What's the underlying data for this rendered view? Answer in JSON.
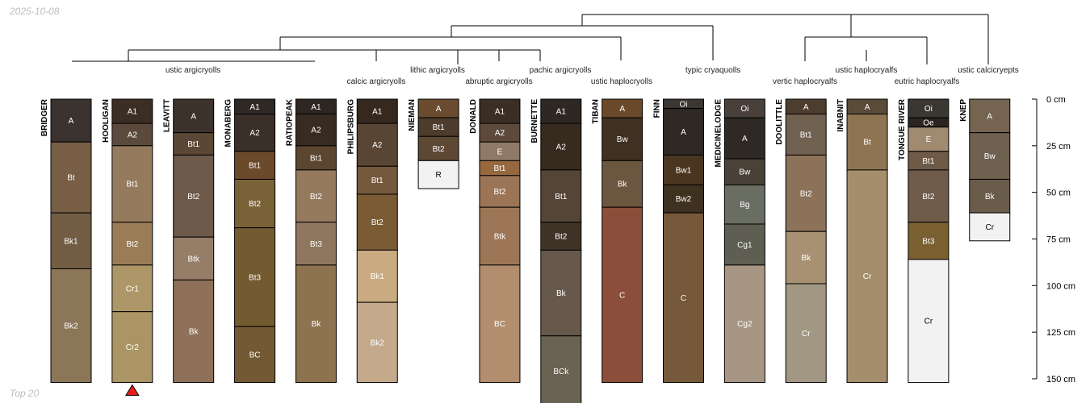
{
  "corner_labels": {
    "date": "2025-10-08",
    "subset": "Top 20"
  },
  "taxonomy_labels": [
    "ustic argicryolls",
    "calcic argicryolls",
    "lithic argicryolls",
    "abruptic argicryolls",
    "pachic argicryolls",
    "ustic haplocryolls",
    "typic cryaquolls",
    "vertic haplocryalfs",
    "ustic haplocryalfs",
    "eutric haplocryalfs",
    "ustic calcicryepts"
  ],
  "depth_axis": {
    "unit": "cm",
    "ticks": [
      0,
      25,
      50,
      75,
      100,
      125,
      150
    ],
    "labels": [
      "0 cm",
      "25 cm",
      "50 cm",
      "75 cm",
      "100 cm",
      "125 cm",
      "150 cm"
    ]
  },
  "chart_data": {
    "type": "soil-profile-sketch",
    "depth_units": "cm",
    "profiles": [
      {
        "name": "BRIDGER",
        "horizons": [
          {
            "name": "A",
            "top": 0,
            "bottom": 23,
            "color": "#3b3330"
          },
          {
            "name": "Bt",
            "top": 23,
            "bottom": 61,
            "color": "#775e44"
          },
          {
            "name": "Bk1",
            "top": 61,
            "bottom": 91,
            "color": "#725d44"
          },
          {
            "name": "Bk2",
            "top": 91,
            "bottom": 152,
            "color": "#8b7657"
          }
        ]
      },
      {
        "name": "HOOLIGAN",
        "marker": "bottom-triangle",
        "horizons": [
          {
            "name": "A1",
            "top": 0,
            "bottom": 13,
            "color": "#3d2e24"
          },
          {
            "name": "A2",
            "top": 13,
            "bottom": 25,
            "color": "#5b4a3c"
          },
          {
            "name": "Bt1",
            "top": 25,
            "bottom": 66,
            "color": "#957b5e"
          },
          {
            "name": "Bt2",
            "top": 66,
            "bottom": 89,
            "color": "#9a7c57"
          },
          {
            "name": "Cr1",
            "top": 89,
            "bottom": 114,
            "color": "#ad9768"
          },
          {
            "name": "Cr2",
            "top": 114,
            "bottom": 152,
            "color": "#ab9565"
          }
        ]
      },
      {
        "name": "LEAVITT",
        "horizons": [
          {
            "name": "A",
            "top": 0,
            "bottom": 18,
            "color": "#3c322b"
          },
          {
            "name": "Bt1",
            "top": 18,
            "bottom": 30,
            "color": "#5b4736"
          },
          {
            "name": "Bt2",
            "top": 30,
            "bottom": 74,
            "color": "#6d5a4a"
          },
          {
            "name": "Btk",
            "top": 74,
            "bottom": 97,
            "color": "#967d68"
          },
          {
            "name": "Bk",
            "top": 97,
            "bottom": 152,
            "color": "#8e7158"
          }
        ]
      },
      {
        "name": "MONABERG",
        "horizons": [
          {
            "name": "A1",
            "top": 0,
            "bottom": 8,
            "color": "#2f2925"
          },
          {
            "name": "A2",
            "top": 8,
            "bottom": 28,
            "color": "#3b3029"
          },
          {
            "name": "Bt1",
            "top": 28,
            "bottom": 43,
            "color": "#6b4a2c"
          },
          {
            "name": "Bt2",
            "top": 43,
            "bottom": 69,
            "color": "#7a6238"
          },
          {
            "name": "Bt3",
            "top": 69,
            "bottom": 122,
            "color": "#735a31"
          },
          {
            "name": "BC",
            "top": 122,
            "bottom": 152,
            "color": "#735a34"
          }
        ]
      },
      {
        "name": "RATIOPEAK",
        "horizons": [
          {
            "name": "A1",
            "top": 0,
            "bottom": 8,
            "color": "#2e2621"
          },
          {
            "name": "A2",
            "top": 8,
            "bottom": 25,
            "color": "#382c22"
          },
          {
            "name": "Bt1",
            "top": 25,
            "bottom": 38,
            "color": "#5b4630"
          },
          {
            "name": "Bt2",
            "top": 38,
            "bottom": 66,
            "color": "#957a5d"
          },
          {
            "name": "Bt3",
            "top": 66,
            "bottom": 89,
            "color": "#8e775e"
          },
          {
            "name": "Bk",
            "top": 89,
            "bottom": 152,
            "color": "#8e7350"
          }
        ]
      },
      {
        "name": "PHILIPSBURG",
        "horizons": [
          {
            "name": "A1",
            "top": 0,
            "bottom": 13,
            "color": "#35291f"
          },
          {
            "name": "A2",
            "top": 13,
            "bottom": 36,
            "color": "#584533"
          },
          {
            "name": "Bt1",
            "top": 36,
            "bottom": 51,
            "color": "#74593d"
          },
          {
            "name": "Bt2",
            "top": 51,
            "bottom": 81,
            "color": "#7a5b34"
          },
          {
            "name": "Bk1",
            "top": 81,
            "bottom": 109,
            "color": "#caaa80"
          },
          {
            "name": "Bk2",
            "top": 109,
            "bottom": 152,
            "color": "#c4a98b"
          }
        ]
      },
      {
        "name": "NIEMAN",
        "horizons": [
          {
            "name": "A",
            "top": 0,
            "bottom": 10,
            "color": "#6a4b2f"
          },
          {
            "name": "Bt1",
            "top": 10,
            "bottom": 20,
            "color": "#4d3c2c"
          },
          {
            "name": "Bt2",
            "top": 20,
            "bottom": 33,
            "color": "#5d4834"
          },
          {
            "name": "R",
            "top": 33,
            "bottom": 48,
            "color": "#f2f2f2"
          }
        ]
      },
      {
        "name": "DONALD",
        "horizons": [
          {
            "name": "A1",
            "top": 0,
            "bottom": 13,
            "color": "#3b2e25"
          },
          {
            "name": "A2",
            "top": 13,
            "bottom": 23,
            "color": "#5d4a3a"
          },
          {
            "name": "E",
            "top": 23,
            "bottom": 33,
            "color": "#8f7a67"
          },
          {
            "name": "Bt1",
            "top": 33,
            "bottom": 41,
            "color": "#96683f"
          },
          {
            "name": "Bt2",
            "top": 41,
            "bottom": 58,
            "color": "#9b7556"
          },
          {
            "name": "Btk",
            "top": 58,
            "bottom": 89,
            "color": "#9c7656"
          },
          {
            "name": "BC",
            "top": 89,
            "bottom": 152,
            "color": "#b38e6e"
          }
        ]
      },
      {
        "name": "BURNETTE",
        "horizons": [
          {
            "name": "A1",
            "top": 0,
            "bottom": 13,
            "color": "#2e2722"
          },
          {
            "name": "A2",
            "top": 13,
            "bottom": 38,
            "color": "#372a1f"
          },
          {
            "name": "Bt1",
            "top": 38,
            "bottom": 66,
            "color": "#544536"
          },
          {
            "name": "Bt2",
            "top": 66,
            "bottom": 81,
            "color": "#403429"
          },
          {
            "name": "Bk",
            "top": 81,
            "bottom": 127,
            "color": "#66594b"
          },
          {
            "name": "BCk",
            "top": 127,
            "bottom": 165,
            "color": "#6a6253"
          }
        ]
      },
      {
        "name": "TIBAN",
        "horizons": [
          {
            "name": "A",
            "top": 0,
            "bottom": 10,
            "color": "#6b4a2b"
          },
          {
            "name": "Bw",
            "top": 10,
            "bottom": 33,
            "color": "#3f3022"
          },
          {
            "name": "Bk",
            "top": 33,
            "bottom": 58,
            "color": "#6b5640"
          },
          {
            "name": "C",
            "top": 58,
            "bottom": 152,
            "color": "#8b4e3a"
          }
        ]
      },
      {
        "name": "FINN",
        "horizons": [
          {
            "name": "Oi",
            "top": 0,
            "bottom": 5,
            "color": "#3a3632"
          },
          {
            "name": "A",
            "top": 5,
            "bottom": 30,
            "color": "#2f2925"
          },
          {
            "name": "Bw1",
            "top": 30,
            "bottom": 46,
            "color": "#4a3620"
          },
          {
            "name": "Bw2",
            "top": 46,
            "bottom": 61,
            "color": "#3f311f"
          },
          {
            "name": "C",
            "top": 61,
            "bottom": 152,
            "color": "#76593a"
          }
        ]
      },
      {
        "name": "MEDICINELODGE",
        "horizons": [
          {
            "name": "Oi",
            "top": 0,
            "bottom": 10,
            "color": "#4a403b"
          },
          {
            "name": "A",
            "top": 10,
            "bottom": 32,
            "color": "#2f2925"
          },
          {
            "name": "Bw",
            "top": 32,
            "bottom": 46,
            "color": "#4a4238"
          },
          {
            "name": "Bg",
            "top": 46,
            "bottom": 67,
            "color": "#6a6e62"
          },
          {
            "name": "Cg1",
            "top": 67,
            "bottom": 89,
            "color": "#5e5e52"
          },
          {
            "name": "Cg2",
            "top": 89,
            "bottom": 152,
            "color": "#a69683"
          }
        ]
      },
      {
        "name": "DOOLITTLE",
        "horizons": [
          {
            "name": "A",
            "top": 0,
            "bottom": 8,
            "color": "#4d3d2e"
          },
          {
            "name": "Bt1",
            "top": 8,
            "bottom": 30,
            "color": "#716150"
          },
          {
            "name": "Bt2",
            "top": 30,
            "bottom": 71,
            "color": "#8b7259"
          },
          {
            "name": "Bk",
            "top": 71,
            "bottom": 99,
            "color": "#a89073"
          },
          {
            "name": "Cr",
            "top": 99,
            "bottom": 152,
            "color": "#a29782"
          }
        ]
      },
      {
        "name": "INABNIT",
        "horizons": [
          {
            "name": "A",
            "top": 0,
            "bottom": 8,
            "color": "#5a4a38"
          },
          {
            "name": "Bt",
            "top": 8,
            "bottom": 38,
            "color": "#8f7454"
          },
          {
            "name": "Cr",
            "top": 38,
            "bottom": 152,
            "color": "#a58e6c"
          }
        ]
      },
      {
        "name": "TONGUE RIVER",
        "horizons": [
          {
            "name": "Oi",
            "top": 0,
            "bottom": 10,
            "color": "#3a3632"
          },
          {
            "name": "Oe",
            "top": 10,
            "bottom": 15,
            "color": "#2a2520"
          },
          {
            "name": "E",
            "top": 15,
            "bottom": 28,
            "color": "#a08a70"
          },
          {
            "name": "Bt1",
            "top": 28,
            "bottom": 38,
            "color": "#6e5a47"
          },
          {
            "name": "Bt2",
            "top": 38,
            "bottom": 66,
            "color": "#6e5b49"
          },
          {
            "name": "Bt3",
            "top": 66,
            "bottom": 86,
            "color": "#7a5f31"
          },
          {
            "name": "Cr",
            "top": 86,
            "bottom": 152,
            "color": "#f2f2f2"
          }
        ]
      },
      {
        "name": "KNEP",
        "horizons": [
          {
            "name": "A",
            "top": 0,
            "bottom": 18,
            "color": "#746450"
          },
          {
            "name": "Bw",
            "top": 18,
            "bottom": 43,
            "color": "#6e6150"
          },
          {
            "name": "Bk",
            "top": 43,
            "bottom": 61,
            "color": "#6a5c4a"
          },
          {
            "name": "Cr",
            "top": 61,
            "bottom": 76,
            "color": "#f2f2f2"
          }
        ]
      }
    ]
  }
}
